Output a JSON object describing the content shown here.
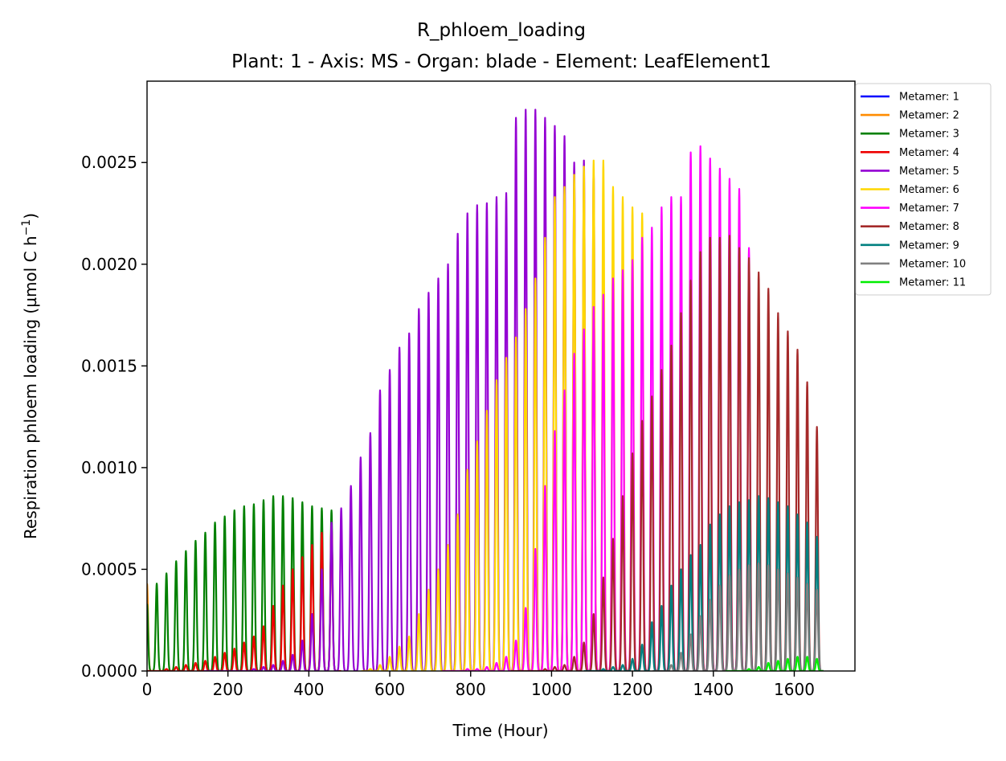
{
  "chart_data": {
    "type": "line",
    "title": "R_phloem_loading",
    "subtitle": "Plant: 1 - Axis: MS - Organ: blade - Element: LeafElement1",
    "xlabel": "Time (Hour)",
    "ylabel": "Respiration phloem loading (µmol C h",
    "ylabel_sup": "−1",
    "ylabel_close": ")",
    "xlim": [
      0,
      1750
    ],
    "ylim": [
      0,
      0.0029
    ],
    "xticks": [
      0,
      200,
      400,
      600,
      800,
      1000,
      1200,
      1400,
      1600
    ],
    "yticks": [
      0,
      0.0005,
      0.001,
      0.0015,
      0.002,
      0.0025
    ],
    "xtick_labels": [
      "0",
      "200",
      "400",
      "600",
      "800",
      "1000",
      "1200",
      "1400",
      "1600"
    ],
    "ytick_labels": [
      "0.0000",
      "0.0005",
      "0.0010",
      "0.0015",
      "0.0020",
      "0.0025"
    ],
    "legend_position": "outside-top-right",
    "grid": false,
    "series": [
      {
        "name": "Metamer: 1",
        "color": "#0000ff",
        "t0": null,
        "t1": null,
        "peaks": []
      },
      {
        "name": "Metamer: 2",
        "color": "#ff8c00",
        "t0": 0,
        "t1": 10,
        "peaks": [
          [
            0,
            0.00043
          ]
        ]
      },
      {
        "name": "Metamer: 3",
        "color": "#008000",
        "t0": 0,
        "t1": 470,
        "peaks": [
          [
            0,
            0.00033
          ],
          [
            24,
            0.00043
          ],
          [
            48,
            0.00048
          ],
          [
            72,
            0.00054
          ],
          [
            96,
            0.00059
          ],
          [
            120,
            0.00064
          ],
          [
            144,
            0.00068
          ],
          [
            168,
            0.00073
          ],
          [
            192,
            0.00076
          ],
          [
            216,
            0.00079
          ],
          [
            240,
            0.00081
          ],
          [
            264,
            0.00082
          ],
          [
            288,
            0.00084
          ],
          [
            312,
            0.00086
          ],
          [
            336,
            0.00086
          ],
          [
            360,
            0.00085
          ],
          [
            384,
            0.00083
          ],
          [
            408,
            0.00081
          ],
          [
            432,
            0.0008
          ],
          [
            456,
            0.00079
          ]
        ]
      },
      {
        "name": "Metamer: 4",
        "color": "#ee0000",
        "t0": 0,
        "t1": 480,
        "peaks": [
          [
            24,
            0.0
          ],
          [
            48,
            1e-05
          ],
          [
            72,
            2e-05
          ],
          [
            96,
            3e-05
          ],
          [
            120,
            4e-05
          ],
          [
            144,
            5e-05
          ],
          [
            168,
            7e-05
          ],
          [
            192,
            9e-05
          ],
          [
            216,
            0.00011
          ],
          [
            240,
            0.00014
          ],
          [
            264,
            0.00017
          ],
          [
            288,
            0.00022
          ],
          [
            312,
            0.00032
          ],
          [
            336,
            0.00042
          ],
          [
            360,
            0.0005
          ],
          [
            384,
            0.00056
          ],
          [
            408,
            0.00062
          ],
          [
            432,
            0.00068
          ],
          [
            456,
            0.00072
          ]
        ]
      },
      {
        "name": "Metamer: 5",
        "color": "#9400d3",
        "t0": 140,
        "t1": 1135,
        "peaks": [
          [
            240,
            0.0
          ],
          [
            264,
            1e-05
          ],
          [
            288,
            2e-05
          ],
          [
            312,
            3e-05
          ],
          [
            336,
            5e-05
          ],
          [
            360,
            8e-05
          ],
          [
            384,
            0.00015
          ],
          [
            408,
            0.00028
          ],
          [
            432,
            0.0005
          ],
          [
            456,
            0.00073
          ],
          [
            480,
            0.0008
          ],
          [
            504,
            0.00091
          ],
          [
            528,
            0.00105
          ],
          [
            552,
            0.00117
          ],
          [
            576,
            0.00138
          ],
          [
            600,
            0.00148
          ],
          [
            624,
            0.00159
          ],
          [
            648,
            0.00166
          ],
          [
            672,
            0.00178
          ],
          [
            696,
            0.00186
          ],
          [
            720,
            0.00193
          ],
          [
            744,
            0.002
          ],
          [
            768,
            0.00215
          ],
          [
            792,
            0.00225
          ],
          [
            816,
            0.00229
          ],
          [
            840,
            0.0023
          ],
          [
            864,
            0.00233
          ],
          [
            888,
            0.00235
          ],
          [
            912,
            0.00272
          ],
          [
            936,
            0.00276
          ],
          [
            960,
            0.00276
          ],
          [
            984,
            0.00272
          ],
          [
            1008,
            0.00268
          ],
          [
            1032,
            0.00263
          ],
          [
            1056,
            0.0025
          ],
          [
            1080,
            0.00251
          ],
          [
            1104,
            0.00246
          ]
        ]
      },
      {
        "name": "Metamer: 6",
        "color": "#ffd700",
        "t0": 530,
        "t1": 1235,
        "peaks": [
          [
            552,
            1e-05
          ],
          [
            576,
            3e-05
          ],
          [
            600,
            7e-05
          ],
          [
            624,
            0.00012
          ],
          [
            648,
            0.00017
          ],
          [
            672,
            0.00028
          ],
          [
            696,
            0.0004
          ],
          [
            720,
            0.0005
          ],
          [
            744,
            0.00062
          ],
          [
            768,
            0.00077
          ],
          [
            792,
            0.00099
          ],
          [
            816,
            0.00113
          ],
          [
            840,
            0.00128
          ],
          [
            864,
            0.00143
          ],
          [
            888,
            0.00154
          ],
          [
            912,
            0.00164
          ],
          [
            936,
            0.00178
          ],
          [
            960,
            0.00193
          ],
          [
            984,
            0.00213
          ],
          [
            1008,
            0.00233
          ],
          [
            1032,
            0.00238
          ],
          [
            1056,
            0.00244
          ],
          [
            1080,
            0.00248
          ],
          [
            1104,
            0.00251
          ],
          [
            1128,
            0.00251
          ],
          [
            1152,
            0.00238
          ],
          [
            1176,
            0.00233
          ],
          [
            1200,
            0.00228
          ],
          [
            1224,
            0.00225
          ]
        ]
      },
      {
        "name": "Metamer: 7",
        "color": "#ff00ff",
        "t0": 730,
        "t1": 1500,
        "peaks": [
          [
            768,
            0.0
          ],
          [
            792,
            1e-05
          ],
          [
            816,
            1e-05
          ],
          [
            840,
            2e-05
          ],
          [
            864,
            4e-05
          ],
          [
            888,
            7e-05
          ],
          [
            912,
            0.00015
          ],
          [
            936,
            0.00031
          ],
          [
            960,
            0.0006
          ],
          [
            984,
            0.00091
          ],
          [
            1008,
            0.00118
          ],
          [
            1032,
            0.00138
          ],
          [
            1056,
            0.00156
          ],
          [
            1080,
            0.00168
          ],
          [
            1104,
            0.00179
          ],
          [
            1128,
            0.00185
          ],
          [
            1152,
            0.00193
          ],
          [
            1176,
            0.00197
          ],
          [
            1200,
            0.00202
          ],
          [
            1224,
            0.00213
          ],
          [
            1248,
            0.00218
          ],
          [
            1272,
            0.00228
          ],
          [
            1296,
            0.00233
          ],
          [
            1320,
            0.00233
          ],
          [
            1344,
            0.00255
          ],
          [
            1368,
            0.00258
          ],
          [
            1392,
            0.00252
          ],
          [
            1416,
            0.00247
          ],
          [
            1440,
            0.00242
          ],
          [
            1464,
            0.00237
          ],
          [
            1488,
            0.00208
          ]
        ]
      },
      {
        "name": "Metamer: 8",
        "color": "#a52a2a",
        "t0": 900,
        "t1": 1672,
        "peaks": [
          [
            984,
            1e-05
          ],
          [
            1008,
            2e-05
          ],
          [
            1032,
            3e-05
          ],
          [
            1056,
            7e-05
          ],
          [
            1080,
            0.00014
          ],
          [
            1104,
            0.00028
          ],
          [
            1128,
            0.00046
          ],
          [
            1152,
            0.00065
          ],
          [
            1176,
            0.00086
          ],
          [
            1200,
            0.00107
          ],
          [
            1224,
            0.00123
          ],
          [
            1248,
            0.00135
          ],
          [
            1272,
            0.00148
          ],
          [
            1296,
            0.0016
          ],
          [
            1320,
            0.00176
          ],
          [
            1344,
            0.00192
          ],
          [
            1368,
            0.00206
          ],
          [
            1392,
            0.00213
          ],
          [
            1416,
            0.00213
          ],
          [
            1440,
            0.00214
          ],
          [
            1464,
            0.00208
          ],
          [
            1488,
            0.00203
          ],
          [
            1512,
            0.00196
          ],
          [
            1536,
            0.00188
          ],
          [
            1560,
            0.00176
          ],
          [
            1584,
            0.00167
          ],
          [
            1608,
            0.00158
          ],
          [
            1632,
            0.00142
          ],
          [
            1656,
            0.0012
          ]
        ]
      },
      {
        "name": "Metamer: 9",
        "color": "#008080",
        "t0": 1080,
        "t1": 1672,
        "peaks": [
          [
            1104,
            0.0
          ],
          [
            1128,
            1e-05
          ],
          [
            1152,
            2e-05
          ],
          [
            1176,
            3e-05
          ],
          [
            1200,
            6e-05
          ],
          [
            1224,
            0.00013
          ],
          [
            1248,
            0.00024
          ],
          [
            1272,
            0.00032
          ],
          [
            1296,
            0.00042
          ],
          [
            1320,
            0.0005
          ],
          [
            1344,
            0.00057
          ],
          [
            1368,
            0.00062
          ],
          [
            1392,
            0.00072
          ],
          [
            1416,
            0.00077
          ],
          [
            1440,
            0.00081
          ],
          [
            1464,
            0.00083
          ],
          [
            1488,
            0.00084
          ],
          [
            1512,
            0.00086
          ],
          [
            1536,
            0.00085
          ],
          [
            1560,
            0.00083
          ],
          [
            1584,
            0.00081
          ],
          [
            1608,
            0.00077
          ],
          [
            1632,
            0.00073
          ],
          [
            1656,
            0.00066
          ]
        ]
      },
      {
        "name": "Metamer: 10",
        "color": "#808080",
        "t0": 1250,
        "t1": 1672,
        "peaks": [
          [
            1296,
            3e-05
          ],
          [
            1320,
            9e-05
          ],
          [
            1344,
            0.00018
          ],
          [
            1368,
            0.00027
          ],
          [
            1392,
            0.00035
          ],
          [
            1416,
            0.00042
          ],
          [
            1440,
            0.00047
          ],
          [
            1464,
            0.0005
          ],
          [
            1488,
            0.00052
          ],
          [
            1512,
            0.00053
          ],
          [
            1536,
            0.00052
          ],
          [
            1560,
            0.0005
          ],
          [
            1584,
            0.00048
          ],
          [
            1608,
            0.00046
          ],
          [
            1632,
            0.00043
          ],
          [
            1656,
            0.0004
          ]
        ]
      },
      {
        "name": "Metamer: 11",
        "color": "#00ee00",
        "t0": 1430,
        "t1": 1672,
        "peaks": [
          [
            1464,
            0.0
          ],
          [
            1488,
            1e-05
          ],
          [
            1512,
            2e-05
          ],
          [
            1536,
            4e-05
          ],
          [
            1560,
            5e-05
          ],
          [
            1584,
            6e-05
          ],
          [
            1608,
            7e-05
          ],
          [
            1632,
            7e-05
          ],
          [
            1656,
            6e-05
          ]
        ]
      }
    ]
  }
}
